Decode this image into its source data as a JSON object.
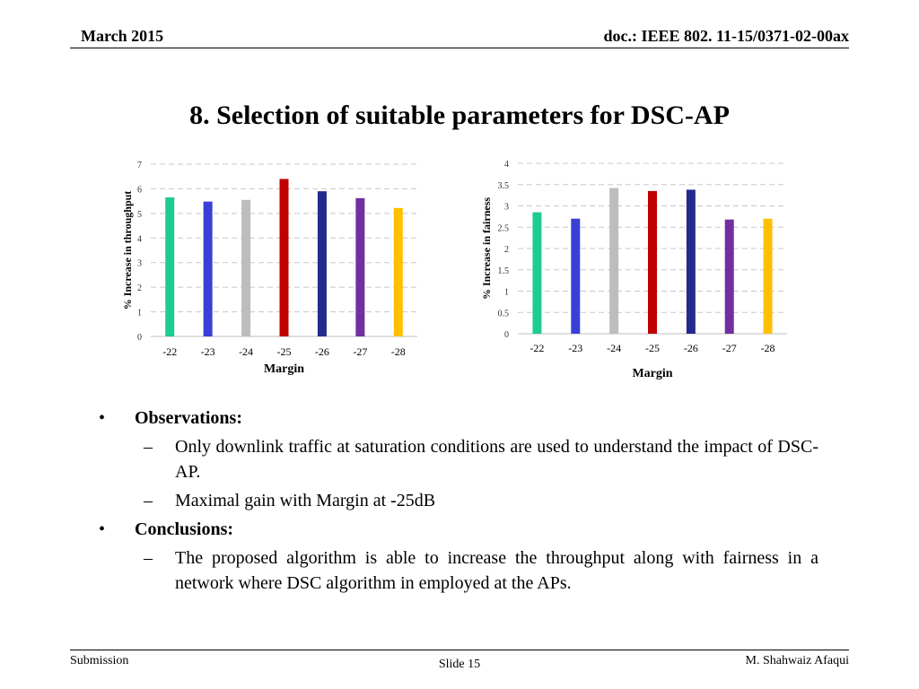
{
  "header": {
    "date": "March 2015",
    "doc": "doc.: IEEE 802. 11-15/0371-02-00ax"
  },
  "title": "8. Selection of suitable parameters for DSC-AP",
  "footer": {
    "left": "Submission",
    "center": "Slide 15",
    "right": "M. Shahwaiz Afaqui"
  },
  "bullets": [
    {
      "label": "Observations:",
      "items": [
        "Only downlink traffic at saturation conditions are used to understand the impact of DSC-AP.",
        "Maximal gain with Margin at -25dB"
      ]
    },
    {
      "label": "Conclusions:",
      "items": [
        "The proposed algorithm is able to increase the throughput along with fairness in a network where DSC algorithm in employed at the APs."
      ]
    }
  ],
  "colors": [
    "#1FCC8F",
    "#3A3FD6",
    "#BDBDBD",
    "#C00000",
    "#242A8C",
    "#7030A0",
    "#FFC000"
  ],
  "chart_data": [
    {
      "type": "bar",
      "categories": [
        "-22",
        "-23",
        "-24",
        "-25",
        "-26",
        "-27",
        "-28"
      ],
      "values": [
        5.65,
        5.48,
        5.55,
        6.4,
        5.9,
        5.62,
        5.22
      ],
      "xlabel": "Margin",
      "ylabel": "% Increase in throughput",
      "ylim": [
        0,
        7
      ],
      "yticks": [
        "0",
        "1",
        "2",
        "3",
        "4",
        "5",
        "6",
        "7"
      ],
      "grid": true
    },
    {
      "type": "bar",
      "categories": [
        "-22",
        "-23",
        "-24",
        "-25",
        "-26",
        "-27",
        "-28"
      ],
      "values": [
        2.85,
        2.7,
        3.42,
        3.35,
        3.38,
        2.68,
        2.7
      ],
      "xlabel": "Margin",
      "ylabel": "% Increase in fairness",
      "ylim": [
        0,
        4
      ],
      "yticks": [
        "0",
        "0.5",
        "1",
        "1.5",
        "2",
        "2.5",
        "3",
        "3.5",
        "4"
      ],
      "grid": true
    }
  ]
}
